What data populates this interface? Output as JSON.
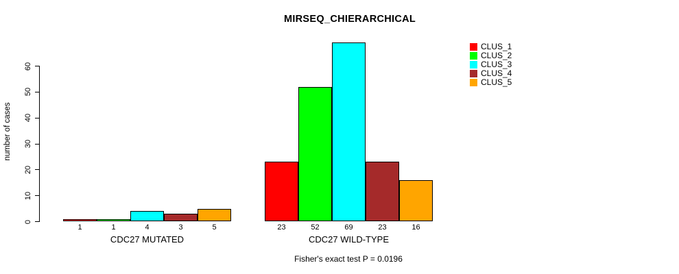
{
  "title": "MIRSEQ_CHIERARCHICAL",
  "ylabel": "number of cases",
  "footer": "Fisher's exact test P = 0.0196",
  "legend": {
    "items": [
      {
        "label": "CLUS_1",
        "color": "#FF0000"
      },
      {
        "label": "CLUS_2",
        "color": "#00FF00"
      },
      {
        "label": "CLUS_3",
        "color": "#00FFFF"
      },
      {
        "label": "CLUS_4",
        "color": "#A52A2A"
      },
      {
        "label": "CLUS_5",
        "color": "#FFA500"
      }
    ]
  },
  "chart_data": {
    "type": "bar",
    "title": "MIRSEQ_CHIERARCHICAL",
    "xlabel": "",
    "ylabel": "number of cases",
    "ylim": [
      0,
      69
    ],
    "y_ticks": [
      0,
      10,
      20,
      30,
      40,
      50,
      60
    ],
    "grid": false,
    "legend_position": "right",
    "series_names": [
      "CLUS_1",
      "CLUS_2",
      "CLUS_3",
      "CLUS_4",
      "CLUS_5"
    ],
    "colors": [
      "#FF0000",
      "#00FF00",
      "#00FFFF",
      "#A52A2A",
      "#FFA500"
    ],
    "groups": [
      {
        "label": "CDC27 MUTATED",
        "values": [
          1,
          1,
          4,
          3,
          5
        ],
        "value_labels": [
          "1",
          "1",
          "4",
          "3",
          "5"
        ]
      },
      {
        "label": "CDC27 WILD-TYPE",
        "values": [
          23,
          52,
          69,
          23,
          16
        ],
        "value_labels": [
          "23",
          "52",
          "69",
          "23",
          "16"
        ]
      }
    ],
    "annotation": "Fisher's exact test P = 0.0196"
  }
}
